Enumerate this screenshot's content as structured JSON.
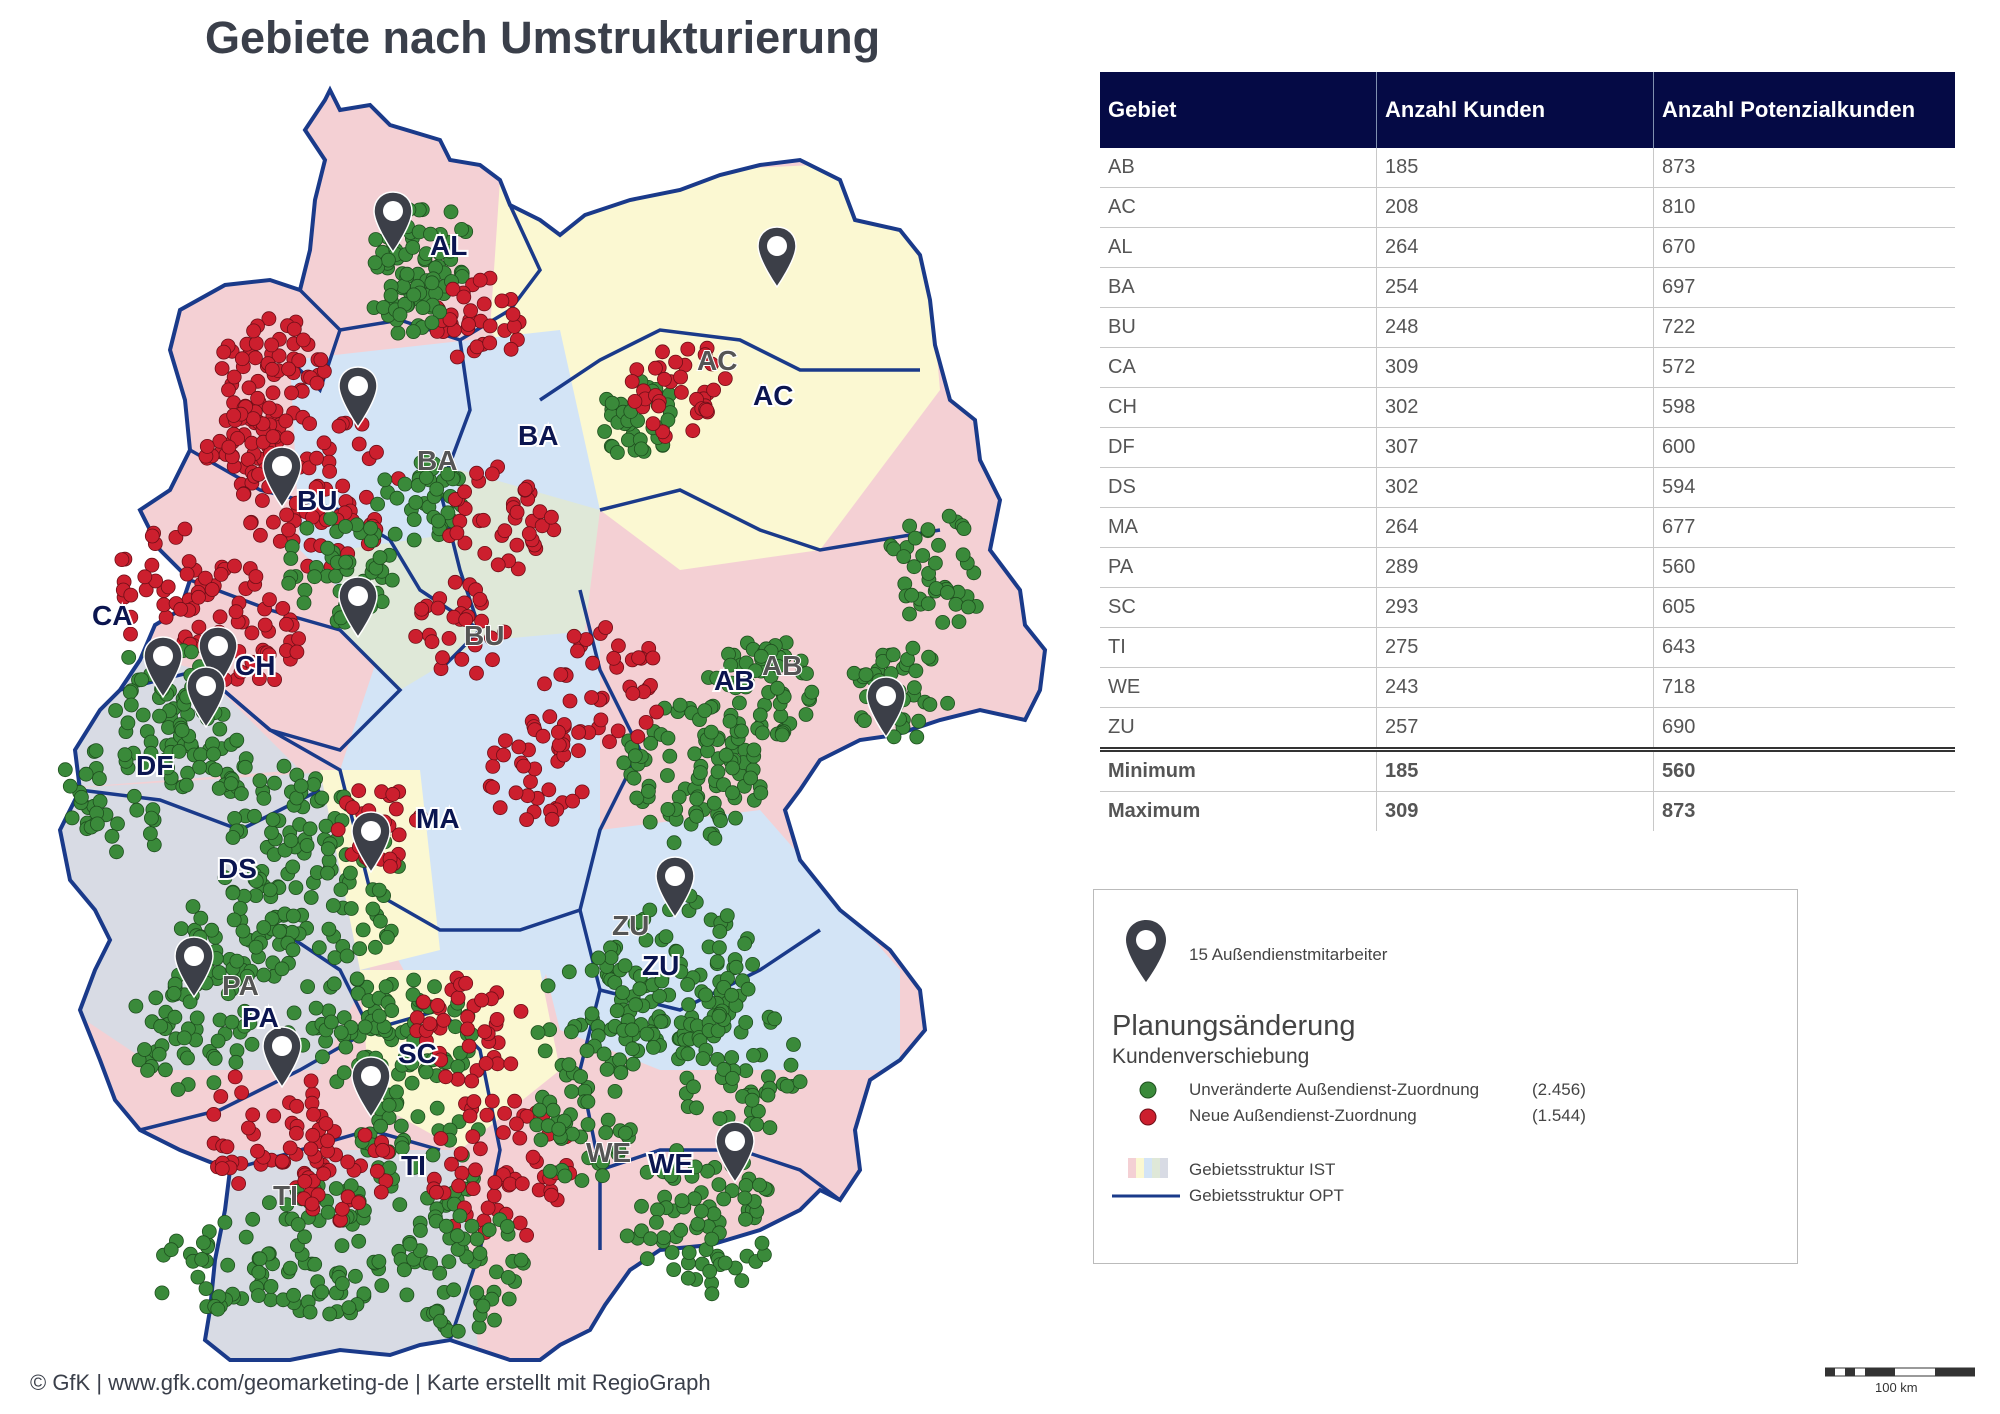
{
  "title": "Gebiete nach Umstrukturierung",
  "footer": "© GfK | www.gfk.com/geomarketing-de | Karte erstellt mit RegioGraph",
  "colors": {
    "header_bg": "#050a45",
    "dot_unchanged": "#3a8a3a",
    "dot_new": "#cc1f2e",
    "territory_border": "#1a3a8a",
    "pin": "#3c3f48",
    "region_pink": "#f4d0d4",
    "region_yellow": "#fbf8d2",
    "region_blue": "#d3e4f6",
    "region_green": "#dfe8d8",
    "region_gray": "#d8dbe4"
  },
  "table": {
    "headers": [
      "Gebiet",
      "Anzahl Kunden",
      "Anzahl Potenzialkunden"
    ],
    "rows": [
      {
        "gebiet": "AB",
        "kunden": "185",
        "potenzial": "873"
      },
      {
        "gebiet": "AC",
        "kunden": "208",
        "potenzial": "810"
      },
      {
        "gebiet": "AL",
        "kunden": "264",
        "potenzial": "670"
      },
      {
        "gebiet": "BA",
        "kunden": "254",
        "potenzial": "697"
      },
      {
        "gebiet": "BU",
        "kunden": "248",
        "potenzial": "722"
      },
      {
        "gebiet": "CA",
        "kunden": "309",
        "potenzial": "572"
      },
      {
        "gebiet": "CH",
        "kunden": "302",
        "potenzial": "598"
      },
      {
        "gebiet": "DF",
        "kunden": "307",
        "potenzial": "600"
      },
      {
        "gebiet": "DS",
        "kunden": "302",
        "potenzial": "594"
      },
      {
        "gebiet": "MA",
        "kunden": "264",
        "potenzial": "677"
      },
      {
        "gebiet": "PA",
        "kunden": "289",
        "potenzial": "560"
      },
      {
        "gebiet": "SC",
        "kunden": "293",
        "potenzial": "605"
      },
      {
        "gebiet": "TI",
        "kunden": "275",
        "potenzial": "643"
      },
      {
        "gebiet": "WE",
        "kunden": "243",
        "potenzial": "718"
      },
      {
        "gebiet": "ZU",
        "kunden": "257",
        "potenzial": "690"
      }
    ],
    "summary": [
      {
        "label": "Minimum",
        "kunden": "185",
        "potenzial": "560"
      },
      {
        "label": "Maximum",
        "kunden": "309",
        "potenzial": "873"
      }
    ]
  },
  "legend": {
    "pins_label": "15 Außendienstmitarbeiter",
    "section_title": "Planungsänderung",
    "section_subtitle": "Kundenverschiebung",
    "unchanged_label": "Unveränderte Außendienst-Zuordnung",
    "unchanged_count": "(2.456)",
    "new_label": "Neue Außendienst-Zuordnung",
    "new_count": "(1.544)",
    "ist_label": "Gebietsstruktur IST",
    "opt_label": "Gebietsstruktur OPT"
  },
  "scale": {
    "label": "100 km"
  },
  "map": {
    "territory_labels": [
      {
        "code": "AL",
        "kind": "opt"
      },
      {
        "code": "AC",
        "kind": "ist"
      },
      {
        "code": "AC",
        "kind": "opt"
      },
      {
        "code": "BA",
        "kind": "opt"
      },
      {
        "code": "BA",
        "kind": "ist"
      },
      {
        "code": "BU",
        "kind": "opt"
      },
      {
        "code": "BU",
        "kind": "ist"
      },
      {
        "code": "CA",
        "kind": "opt"
      },
      {
        "code": "CH",
        "kind": "opt"
      },
      {
        "code": "AB",
        "kind": "opt"
      },
      {
        "code": "AB",
        "kind": "ist"
      },
      {
        "code": "DF",
        "kind": "opt"
      },
      {
        "code": "MA",
        "kind": "opt"
      },
      {
        "code": "DS",
        "kind": "opt"
      },
      {
        "code": "ZU",
        "kind": "ist"
      },
      {
        "code": "ZU",
        "kind": "opt"
      },
      {
        "code": "PA",
        "kind": "ist"
      },
      {
        "code": "PA",
        "kind": "opt"
      },
      {
        "code": "SC",
        "kind": "opt"
      },
      {
        "code": "TI",
        "kind": "opt"
      },
      {
        "code": "TI",
        "kind": "ist"
      },
      {
        "code": "WE",
        "kind": "opt"
      },
      {
        "code": "WE",
        "kind": "ist"
      }
    ]
  }
}
